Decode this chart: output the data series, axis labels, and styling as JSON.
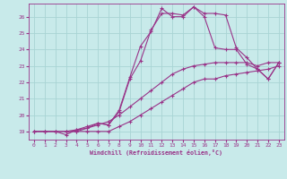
{
  "xlabel": "Windchill (Refroidissement éolien,°C)",
  "bg_color": "#c8eaea",
  "grid_color": "#a8d4d4",
  "line_color": "#993388",
  "xlim": [
    -0.5,
    23.5
  ],
  "ylim": [
    18.5,
    26.8
  ],
  "yticks": [
    19,
    20,
    21,
    22,
    23,
    24,
    25,
    26
  ],
  "xticks": [
    0,
    1,
    2,
    3,
    4,
    5,
    6,
    7,
    8,
    9,
    10,
    11,
    12,
    13,
    14,
    15,
    16,
    17,
    18,
    19,
    20,
    21,
    22,
    23
  ],
  "lines": [
    {
      "x": [
        0,
        1,
        2,
        3,
        4,
        5,
        6,
        7,
        8,
        9,
        10,
        11,
        12,
        13,
        14,
        15,
        16,
        17,
        18,
        19,
        20,
        21,
        22,
        23
      ],
      "y": [
        19,
        19,
        19,
        19,
        19,
        19,
        19,
        19,
        19.3,
        19.6,
        20.0,
        20.4,
        20.8,
        21.2,
        21.6,
        22.0,
        22.2,
        22.2,
        22.4,
        22.5,
        22.6,
        22.7,
        22.8,
        23.0
      ]
    },
    {
      "x": [
        0,
        1,
        2,
        3,
        4,
        5,
        6,
        7,
        8,
        9,
        10,
        11,
        12,
        13,
        14,
        15,
        16,
        17,
        18,
        19,
        20,
        21,
        22,
        23
      ],
      "y": [
        19,
        19,
        19,
        19,
        19,
        19.2,
        19.4,
        19.6,
        20.0,
        20.5,
        21.0,
        21.5,
        22.0,
        22.5,
        22.8,
        23.0,
        23.1,
        23.2,
        23.2,
        23.2,
        23.2,
        23.0,
        23.2,
        23.2
      ]
    },
    {
      "x": [
        0,
        1,
        2,
        3,
        4,
        5,
        6,
        7,
        8,
        9,
        10,
        11,
        12,
        13,
        14,
        15,
        16,
        17,
        18,
        19,
        20,
        21,
        22,
        23
      ],
      "y": [
        19,
        19,
        19,
        18.8,
        19.1,
        19.2,
        19.5,
        19.4,
        20.2,
        22.2,
        23.3,
        25.2,
        26.2,
        26.2,
        26.1,
        26.6,
        26.2,
        26.2,
        26.1,
        24.1,
        23.5,
        22.8,
        22.2,
        23.2
      ]
    },
    {
      "x": [
        3,
        4,
        5,
        6,
        7,
        8,
        9,
        10,
        11,
        12,
        13,
        14,
        15,
        16,
        17,
        18,
        19,
        20,
        21,
        22,
        23
      ],
      "y": [
        19.0,
        19.1,
        19.3,
        19.5,
        19.4,
        20.3,
        22.3,
        24.2,
        25.1,
        26.5,
        26.0,
        26.0,
        26.6,
        26.0,
        24.1,
        24.0,
        24.0,
        23.1,
        22.8,
        22.2,
        23.2
      ]
    }
  ]
}
